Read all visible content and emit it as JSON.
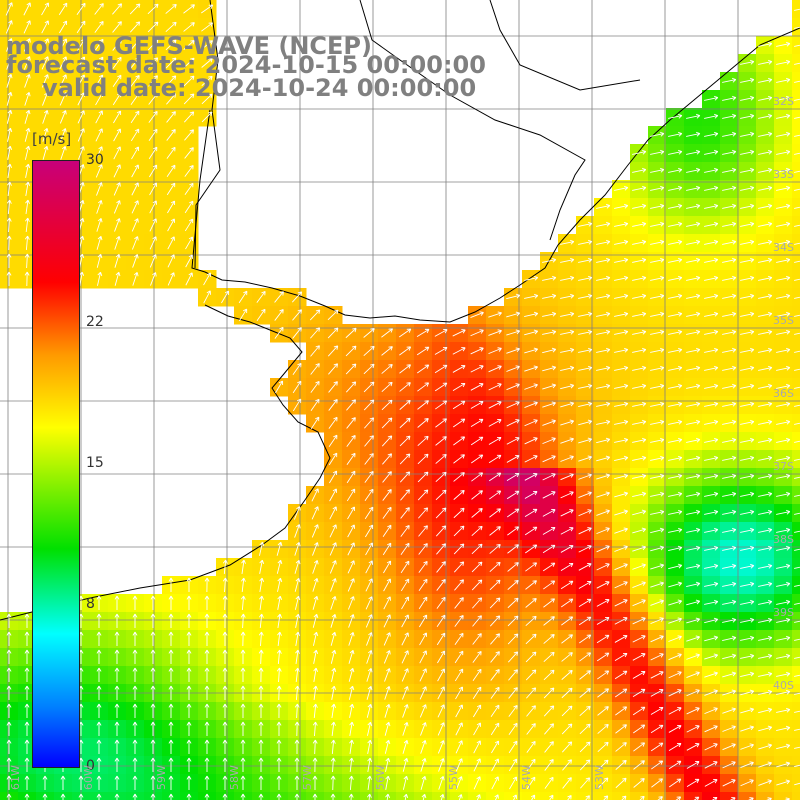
{
  "title": {
    "line1": "modelo GEFS-WAVE (NCEP)",
    "line2": "forecast date: 2024-10-15 00:00:00",
    "line3": "valid date: 2024-10-24 00:00:00"
  },
  "colorbar": {
    "unit": "[m/s]",
    "ticks": [
      {
        "label": "30",
        "value": 30
      },
      {
        "label": "22",
        "value": 22
      },
      {
        "label": "15",
        "value": 15
      },
      {
        "label": "8",
        "value": 8
      },
      {
        "label": "0",
        "value": 0
      }
    ],
    "min": 0,
    "max": 30,
    "colors": [
      "#0000ff",
      "#0080ff",
      "#00ffff",
      "#00e000",
      "#ffff00",
      "#ff9a00",
      "#ff0000",
      "#c8007a"
    ]
  },
  "map": {
    "lat_labels": [
      "32S",
      "33S",
      "34S",
      "35S",
      "36S",
      "37S",
      "38S",
      "39S",
      "40S"
    ],
    "lon_labels": [
      "61W",
      "60W",
      "59W",
      "58W",
      "57W",
      "56W",
      "55W",
      "54W",
      "53W"
    ],
    "grid_color": "#808080",
    "coast_color": "#000000",
    "arrow_color": "#ffffff"
  }
}
